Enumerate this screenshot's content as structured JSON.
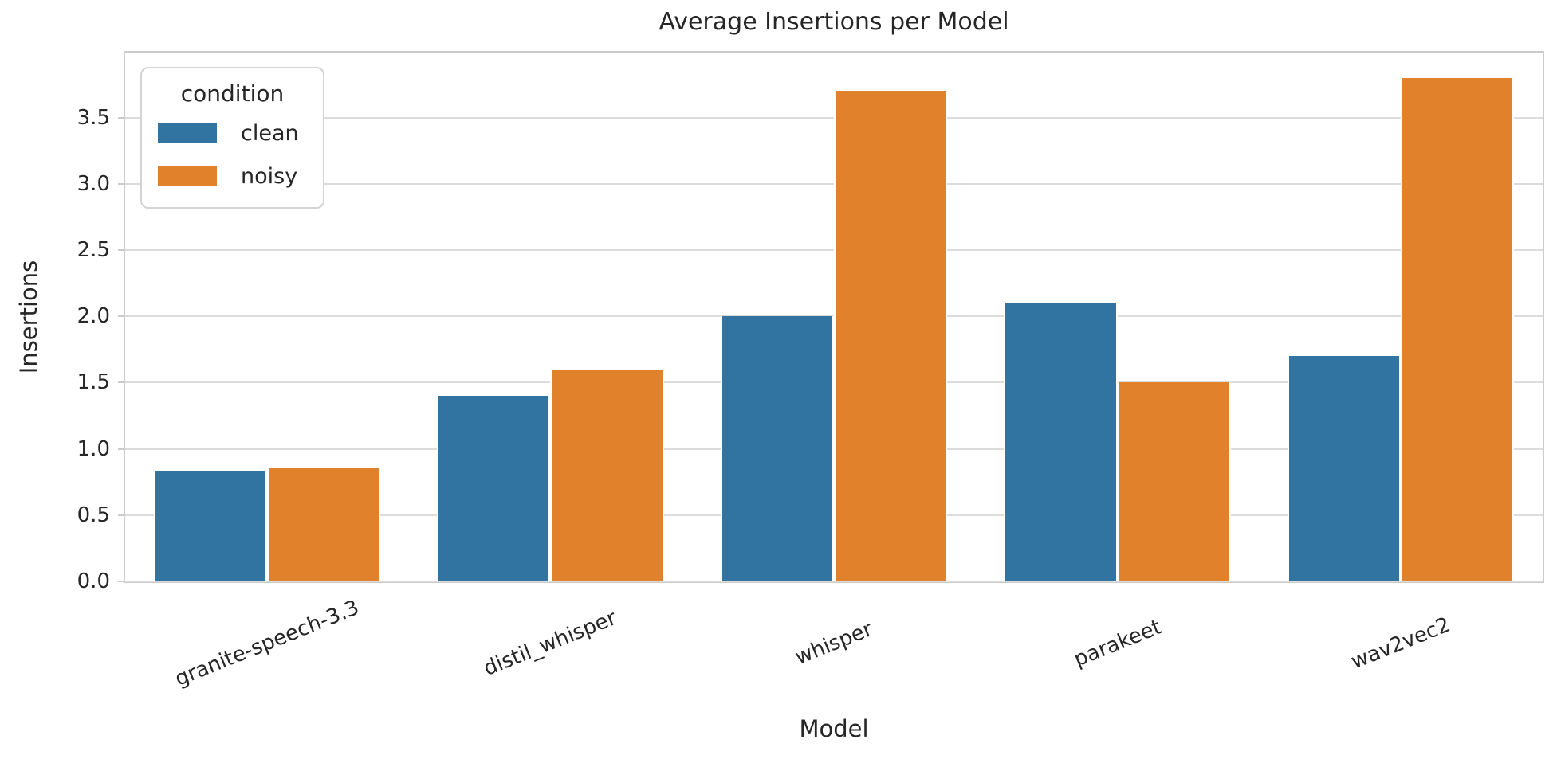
{
  "chart_data": {
    "type": "bar",
    "title": "Average Insertions per Model",
    "xlabel": "Model",
    "ylabel": "Insertions",
    "categories": [
      "granite-speech-3.3",
      "distil_whisper",
      "whisper",
      "parakeet",
      "wav2vec2"
    ],
    "series": [
      {
        "name": "clean",
        "color": "#3274a1",
        "values": [
          0.83,
          1.4,
          2.0,
          2.1,
          1.7
        ]
      },
      {
        "name": "noisy",
        "color": "#e1812c",
        "values": [
          0.86,
          1.6,
          3.7,
          1.5,
          3.8
        ]
      }
    ],
    "ylim": [
      0,
      3.99
    ],
    "yticks": [
      0.0,
      0.5,
      1.0,
      1.5,
      2.0,
      2.5,
      3.0,
      3.5
    ],
    "ytick_labels": [
      "0.0",
      "0.5",
      "1.0",
      "1.5",
      "2.0",
      "2.5",
      "3.0",
      "3.5"
    ],
    "grid": "horizontal",
    "legend": {
      "title": "condition",
      "position": "upper left"
    },
    "style": {
      "grid_color": "#dcdcdc",
      "spine_color": "#cccccc",
      "text_color": "#262626",
      "xtick_rotation_deg": 22
    }
  }
}
